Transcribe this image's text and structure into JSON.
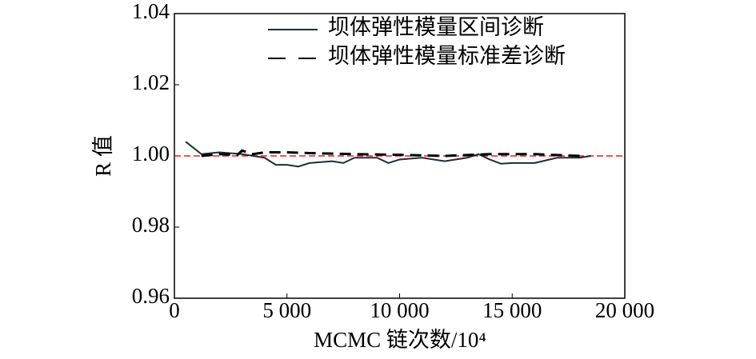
{
  "chart_data": {
    "type": "line",
    "xlabel": "MCMC 链次数/10⁴",
    "ylabel": "R 值",
    "xlim": [
      0,
      20000
    ],
    "ylim": [
      0.96,
      1.04
    ],
    "xticks": [
      0,
      {
        "value": 5000,
        "label": "5 000"
      },
      {
        "value": 10000,
        "label": "10 000"
      },
      {
        "value": 15000,
        "label": "15 000"
      },
      {
        "value": 20000,
        "label": "20 000"
      }
    ],
    "yticks": [
      0.96,
      0.98,
      {
        "value": 1,
        "label": "1.00"
      },
      1.02,
      1.04
    ],
    "reference_line": {
      "value": 1,
      "color": "#d62728"
    },
    "legend": "upper right",
    "series": [
      {
        "name": "坝体弹性模量区间诊断",
        "color": "#1f2d33",
        "dash": false,
        "x": [
          500,
          1200,
          2000,
          3000,
          4000,
          4500,
          5000,
          5500,
          6000,
          7000,
          7500,
          8000,
          9000,
          9500,
          10000,
          11000,
          12000,
          13000,
          13500,
          14000,
          14500,
          15000,
          16000,
          17000,
          18000,
          18500
        ],
        "values": [
          1.004,
          1.0005,
          1.001,
          1.0005,
          0.9995,
          0.9975,
          0.9975,
          0.997,
          0.998,
          0.9985,
          0.998,
          0.9995,
          0.9995,
          0.998,
          0.999,
          0.9995,
          0.9985,
          0.9995,
          1.0005,
          0.999,
          0.9978,
          0.998,
          0.998,
          0.9995,
          0.9995,
          1.0
        ]
      },
      {
        "name": "坝体弹性模量标准差诊断",
        "color": "#000000",
        "dash": true,
        "x": [
          1200,
          2000,
          2800,
          3000,
          3500,
          4000,
          5000,
          6000,
          8000,
          10000,
          12000,
          14000,
          16000,
          18000
        ],
        "values": [
          1.0,
          1.0005,
          1.0003,
          1.0015,
          1.0005,
          1.001,
          1.001,
          1.0008,
          1.0005,
          1.0003,
          1.0,
          1.0005,
          1.0005,
          1.0
        ]
      }
    ]
  }
}
